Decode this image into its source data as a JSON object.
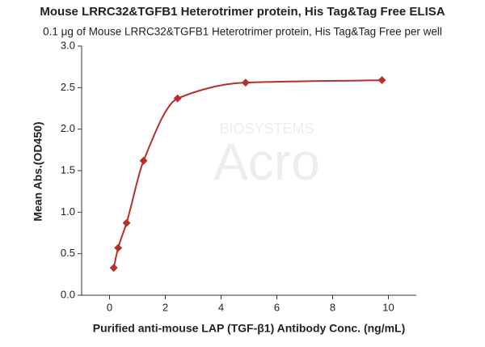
{
  "chart_data": {
    "type": "scatter",
    "title": "Mouse LRRC32&TGFB1 Heterotrimer protein, His Tag&Tag Free ELISA",
    "subtitle": "0.1 μg of Mouse LRRC32&TGFB1 Heterotrimer protein, His Tag&Tag Free per well",
    "watermark": "Acro",
    "watermark_sub": "BIOSYSTEMS",
    "x_label": "Purified anti-mouse LAP (TGF-β1) Antibody Conc. (ng/mL)",
    "y_label": "Mean Abs.(OD450)",
    "x": [
      0.15,
      0.31,
      0.61,
      1.22,
      2.44,
      4.88,
      9.77
    ],
    "values": [
      0.33,
      0.57,
      0.87,
      1.62,
      2.37,
      2.56,
      2.59
    ],
    "color": "#b5302a",
    "xlim": [
      -1,
      11
    ],
    "xticks": [
      0,
      2,
      4,
      6,
      8,
      10
    ],
    "ylim": [
      0,
      3
    ],
    "yticks": [
      {
        "value": 0,
        "label": "0.0"
      },
      0.5,
      {
        "value": 1,
        "label": "1.0"
      },
      1.5,
      {
        "value": 2,
        "label": "2.0"
      },
      2.5,
      {
        "value": 3,
        "label": "3.0"
      }
    ],
    "fit_curve": true
  }
}
